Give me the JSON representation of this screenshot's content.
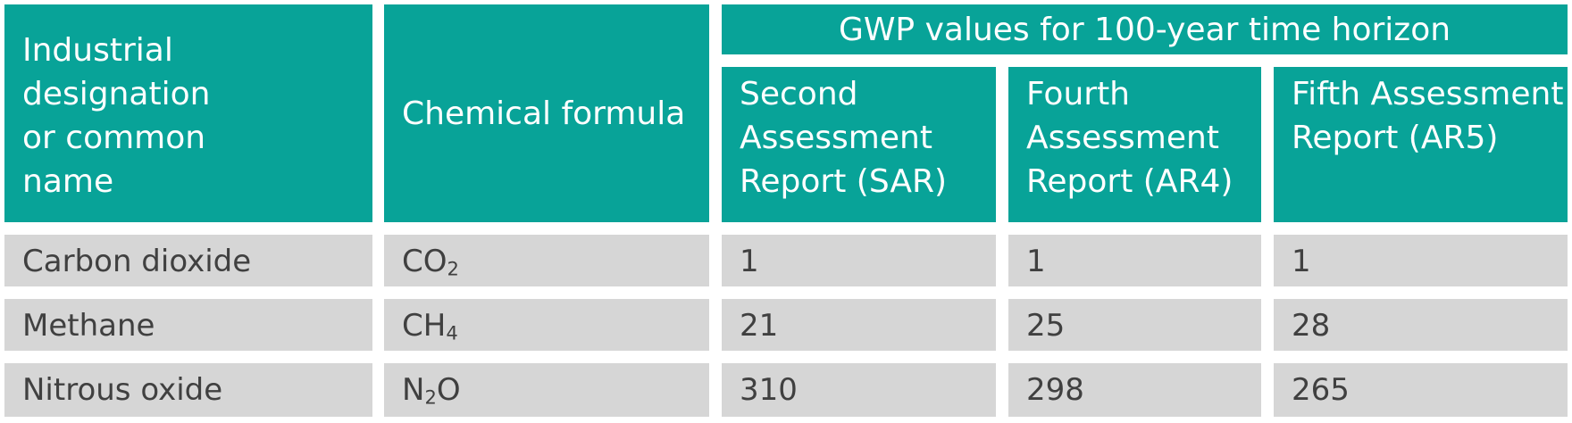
{
  "header": {
    "col1": "Industrial designation or common name",
    "col2": "Chemical formula",
    "group": "GWP values for 100-year time horizon",
    "col3": "Second Assessment Report (SAR)",
    "col4": "Fourth Assessment Report (AR4)",
    "col5": "Fifth Assessment Report (AR5)"
  },
  "rows": [
    {
      "name": "Carbon dioxide",
      "formula": {
        "pre": "CO",
        "sub": "2",
        "post": ""
      },
      "sar": "1",
      "ar4": "1",
      "ar5": "1"
    },
    {
      "name": "Methane",
      "formula": {
        "pre": "CH",
        "sub": "4",
        "post": ""
      },
      "sar": "21",
      "ar4": "25",
      "ar5": "28"
    },
    {
      "name": "Nitrous oxide",
      "formula": {
        "pre": "N",
        "sub": "2",
        "post": "O"
      },
      "sar": "310",
      "ar4": "298",
      "ar5": "265"
    }
  ],
  "colors": {
    "header_bg": "#08a398",
    "body_bg": "#d6d6d6",
    "header_text": "#ffffff",
    "body_text": "#404040"
  }
}
